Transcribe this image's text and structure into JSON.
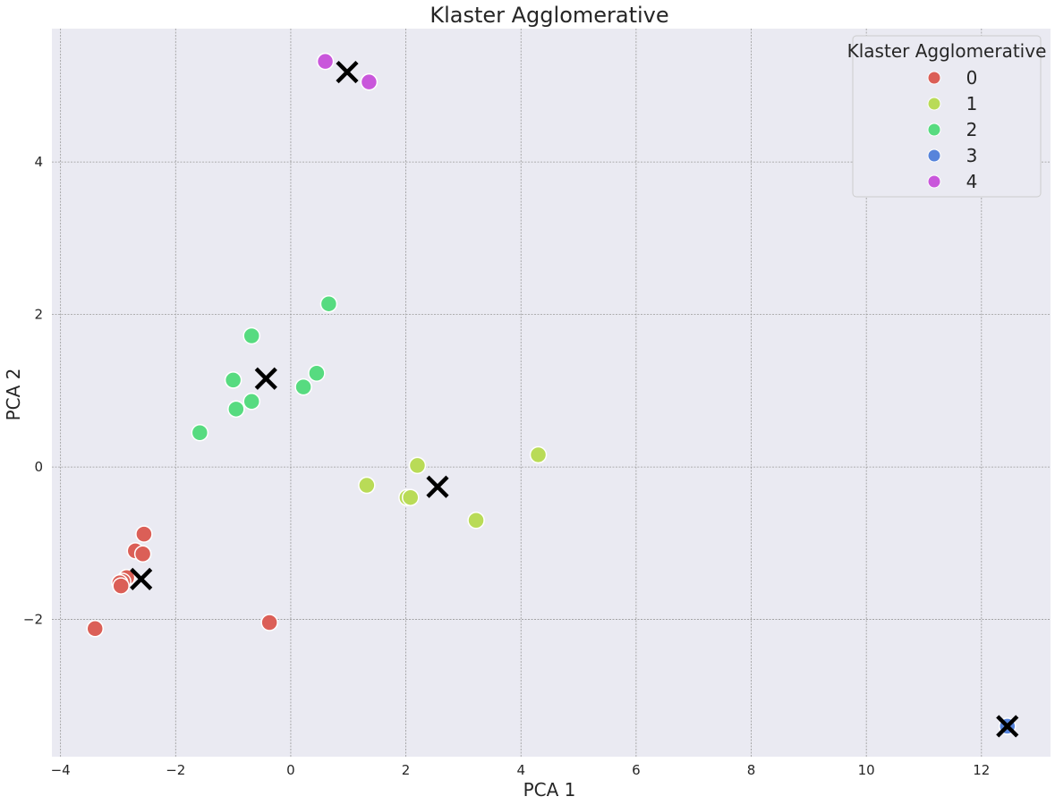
{
  "chart_data": {
    "type": "scatter",
    "title": "Klaster Agglomerative",
    "xlabel": "PCA 1",
    "ylabel": "PCA 2",
    "xlim": [
      -4.15,
      13.2
    ],
    "ylim": [
      -3.8,
      5.75
    ],
    "xticks": [
      -4,
      -2,
      0,
      2,
      4,
      6,
      8,
      10,
      12
    ],
    "yticks": [
      -2,
      0,
      2,
      4
    ],
    "xtick_labels": [
      "−4",
      "−2",
      "0",
      "2",
      "4",
      "6",
      "8",
      "10",
      "12"
    ],
    "ytick_labels": [
      "−2",
      "0",
      "2",
      "4"
    ],
    "grid": true,
    "background": "#eaeaf2",
    "legend": {
      "title": "Klaster Agglomerative",
      "placement": "top-right"
    },
    "series": [
      {
        "name": "0",
        "color": "#db5f57",
        "points": [
          [
            -2.55,
            -0.88
          ],
          [
            -2.7,
            -1.1
          ],
          [
            -2.57,
            -1.14
          ],
          [
            -2.85,
            -1.45
          ],
          [
            -2.92,
            -1.5
          ],
          [
            -2.97,
            -1.52
          ],
          [
            -2.95,
            -1.56
          ],
          [
            -3.4,
            -2.12
          ],
          [
            -0.37,
            -2.04
          ]
        ]
      },
      {
        "name": "1",
        "color": "#b9db57",
        "points": [
          [
            1.32,
            -0.24
          ],
          [
            2.2,
            0.02
          ],
          [
            2.02,
            -0.4
          ],
          [
            2.08,
            -0.4
          ],
          [
            3.22,
            -0.7
          ],
          [
            4.3,
            0.16
          ]
        ]
      },
      {
        "name": "2",
        "color": "#57db80",
        "points": [
          [
            -0.68,
            1.72
          ],
          [
            0.66,
            2.14
          ],
          [
            -1.0,
            1.14
          ],
          [
            0.45,
            1.23
          ],
          [
            0.22,
            1.05
          ],
          [
            -0.68,
            0.86
          ],
          [
            -0.95,
            0.76
          ],
          [
            -1.58,
            0.45
          ]
        ]
      },
      {
        "name": "3",
        "color": "#5784db",
        "points": [
          [
            12.45,
            -3.4
          ]
        ]
      },
      {
        "name": "4",
        "color": "#c957db",
        "points": [
          [
            0.6,
            5.32
          ],
          [
            1.36,
            5.05
          ]
        ]
      }
    ],
    "centroids": [
      [
        -2.6,
        -1.47
      ],
      [
        2.55,
        -0.26
      ],
      [
        -0.43,
        1.16
      ],
      [
        12.45,
        -3.4
      ],
      [
        0.98,
        5.18
      ]
    ]
  }
}
